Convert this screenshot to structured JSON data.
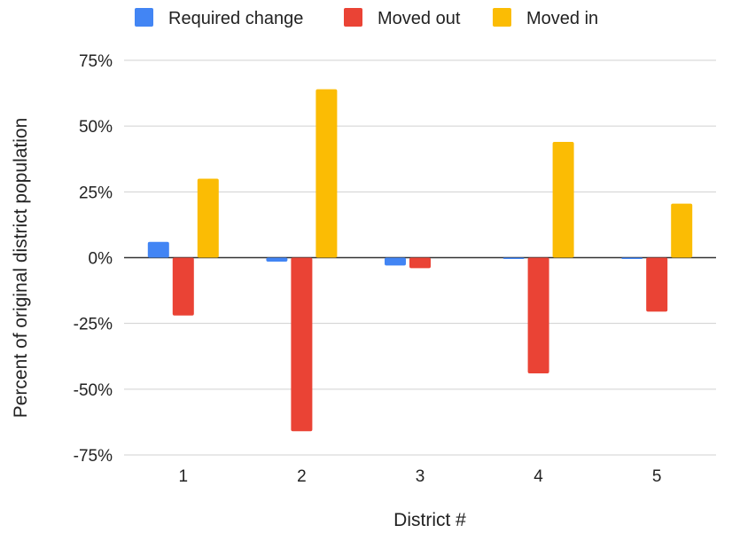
{
  "chart_data": {
    "type": "bar",
    "title": "",
    "xlabel": "District #",
    "ylabel": "Percent of original district population",
    "categories": [
      "1",
      "2",
      "3",
      "4",
      "5"
    ],
    "series": [
      {
        "name": "Required change",
        "color": "#4285F4",
        "values": [
          6,
          -1.5,
          -3,
          -0.5,
          -0.5
        ]
      },
      {
        "name": "Moved out",
        "color": "#EA4335",
        "values": [
          -22,
          -66,
          -4,
          -44,
          -20.5
        ]
      },
      {
        "name": "Moved in",
        "color": "#FBBC04",
        "values": [
          30,
          64,
          0,
          44,
          20.5
        ]
      }
    ],
    "ylim": [
      -75,
      75
    ],
    "yticks": [
      75,
      50,
      25,
      0,
      -25,
      -50,
      -75
    ],
    "ytick_labels": [
      "75%",
      "50%",
      "25%",
      "0%",
      "-25%",
      "-50%",
      "-75%"
    ],
    "grid": true,
    "legend_position": "top"
  }
}
